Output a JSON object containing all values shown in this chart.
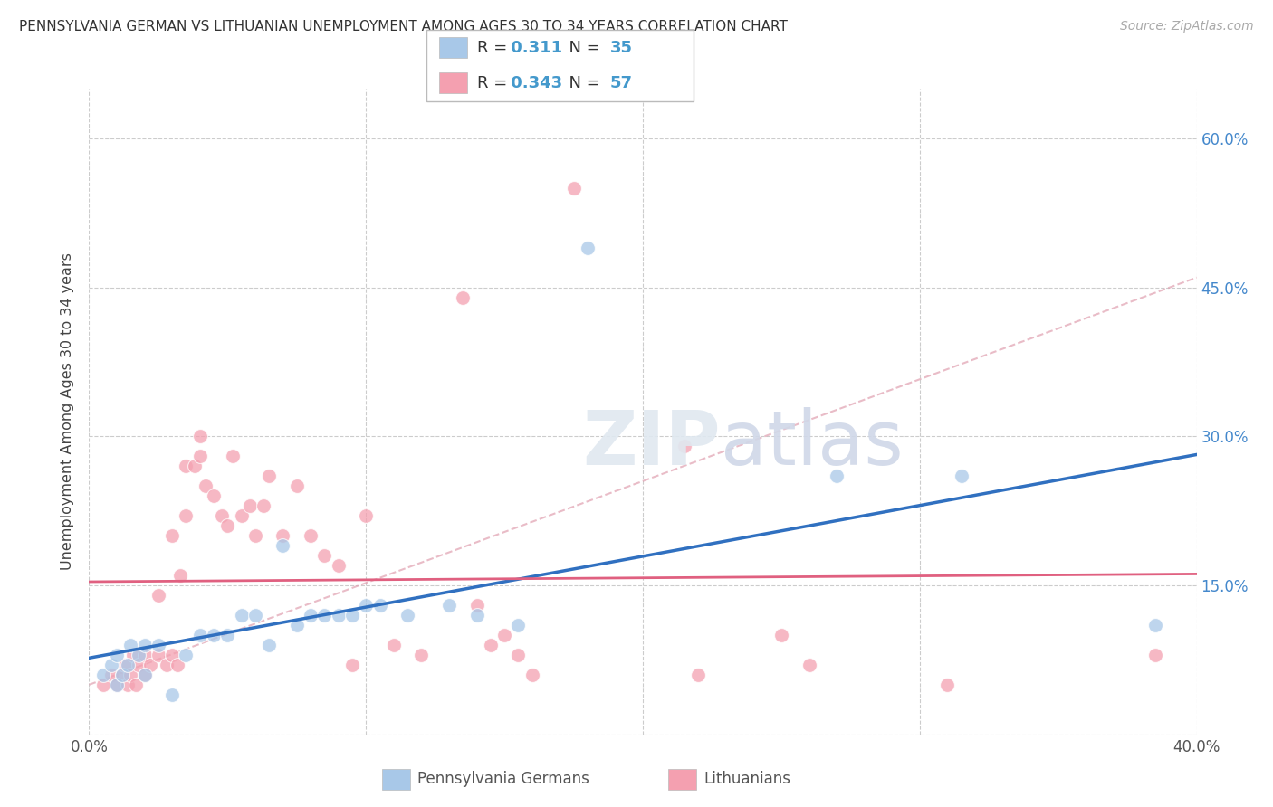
{
  "title": "PENNSYLVANIA GERMAN VS LITHUANIAN UNEMPLOYMENT AMONG AGES 30 TO 34 YEARS CORRELATION CHART",
  "source": "Source: ZipAtlas.com",
  "ylabel": "Unemployment Among Ages 30 to 34 years",
  "xlim": [
    0.0,
    0.4
  ],
  "ylim": [
    0.0,
    0.65
  ],
  "ytick_values": [
    0.0,
    0.15,
    0.3,
    0.45,
    0.6
  ],
  "xtick_values": [
    0.0,
    0.1,
    0.2,
    0.3,
    0.4
  ],
  "r1_value": "0.311",
  "r2_value": "0.343",
  "n1_value": "35",
  "n2_value": "57",
  "blue_color": "#a8c8e8",
  "pink_color": "#f4a0b0",
  "blue_line_color": "#3070c0",
  "pink_line_color": "#e06080",
  "dashed_color": "#e0a0b0",
  "watermark": "ZIPatlas",
  "bg_color": "#ffffff",
  "grid_color": "#cccccc",
  "blue_scatter_x": [
    0.005,
    0.008,
    0.01,
    0.01,
    0.012,
    0.014,
    0.015,
    0.018,
    0.02,
    0.02,
    0.025,
    0.03,
    0.035,
    0.04,
    0.045,
    0.05,
    0.055,
    0.06,
    0.065,
    0.07,
    0.075,
    0.08,
    0.085,
    0.09,
    0.095,
    0.1,
    0.105,
    0.115,
    0.13,
    0.14,
    0.155,
    0.18,
    0.27,
    0.315,
    0.385
  ],
  "blue_scatter_y": [
    0.06,
    0.07,
    0.05,
    0.08,
    0.06,
    0.07,
    0.09,
    0.08,
    0.06,
    0.09,
    0.09,
    0.04,
    0.08,
    0.1,
    0.1,
    0.1,
    0.12,
    0.12,
    0.09,
    0.19,
    0.11,
    0.12,
    0.12,
    0.12,
    0.12,
    0.13,
    0.13,
    0.12,
    0.13,
    0.12,
    0.11,
    0.49,
    0.26,
    0.26,
    0.11
  ],
  "pink_scatter_x": [
    0.005,
    0.008,
    0.01,
    0.012,
    0.013,
    0.014,
    0.015,
    0.016,
    0.017,
    0.018,
    0.02,
    0.02,
    0.022,
    0.025,
    0.025,
    0.028,
    0.03,
    0.03,
    0.032,
    0.033,
    0.035,
    0.035,
    0.038,
    0.04,
    0.04,
    0.042,
    0.045,
    0.048,
    0.05,
    0.052,
    0.055,
    0.058,
    0.06,
    0.063,
    0.065,
    0.07,
    0.075,
    0.08,
    0.085,
    0.09,
    0.095,
    0.1,
    0.11,
    0.12,
    0.135,
    0.14,
    0.145,
    0.15,
    0.155,
    0.16,
    0.175,
    0.215,
    0.22,
    0.25,
    0.26,
    0.31,
    0.385
  ],
  "pink_scatter_y": [
    0.05,
    0.06,
    0.05,
    0.06,
    0.07,
    0.05,
    0.06,
    0.08,
    0.05,
    0.07,
    0.06,
    0.08,
    0.07,
    0.08,
    0.14,
    0.07,
    0.08,
    0.2,
    0.07,
    0.16,
    0.22,
    0.27,
    0.27,
    0.28,
    0.3,
    0.25,
    0.24,
    0.22,
    0.21,
    0.28,
    0.22,
    0.23,
    0.2,
    0.23,
    0.26,
    0.2,
    0.25,
    0.2,
    0.18,
    0.17,
    0.07,
    0.22,
    0.09,
    0.08,
    0.44,
    0.13,
    0.09,
    0.1,
    0.08,
    0.06,
    0.55,
    0.29,
    0.06,
    0.1,
    0.07,
    0.05,
    0.08
  ]
}
